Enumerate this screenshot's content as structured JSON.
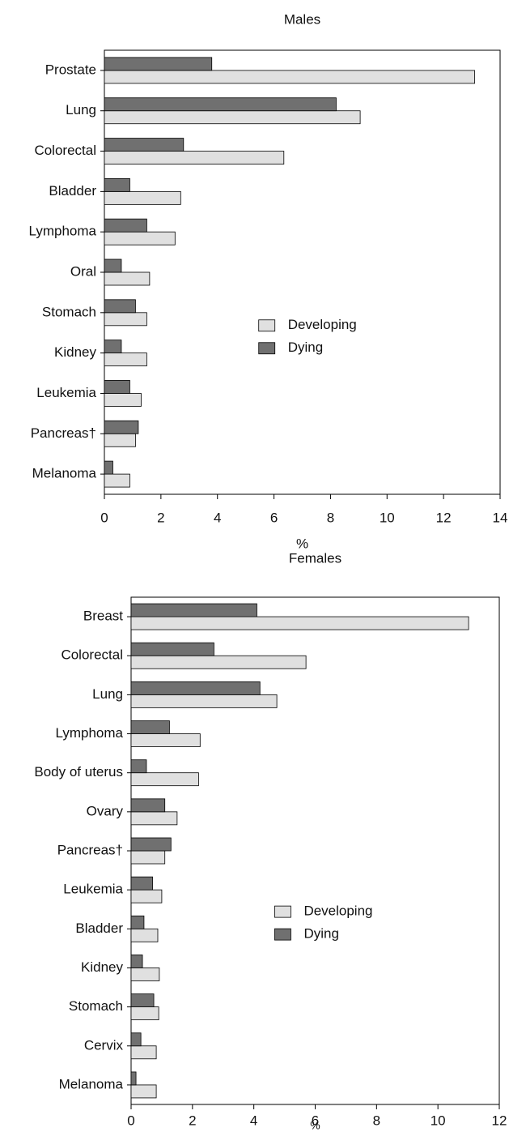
{
  "chart_data": [
    {
      "type": "barh",
      "title": "Males",
      "xlabel": "%",
      "categories": [
        "Prostate",
        "Lung",
        "Colorectal",
        "Bladder",
        "Lymphoma",
        "Oral",
        "Stomach",
        "Kidney",
        "Leukemia",
        "Pancreas†",
        "Melanoma"
      ],
      "series": [
        {
          "name": "Developing",
          "color": "#e0e0e0",
          "values": [
            13.1,
            9.05,
            6.35,
            2.7,
            2.5,
            1.6,
            1.5,
            1.5,
            1.3,
            1.1,
            0.9
          ]
        },
        {
          "name": "Dying",
          "color": "#707070",
          "values": [
            3.8,
            8.2,
            2.8,
            0.9,
            1.5,
            0.6,
            1.1,
            0.6,
            0.9,
            1.2,
            0.3
          ]
        }
      ],
      "xlim": [
        0,
        14
      ],
      "xticks": [
        0,
        2,
        4,
        6,
        8,
        10,
        12,
        14
      ],
      "legend": "center"
    },
    {
      "type": "barh",
      "title": "Females",
      "xlabel": "%",
      "categories": [
        "Breast",
        "Colorectal",
        "Lung",
        "Lymphoma",
        "Body of uterus",
        "Ovary",
        "Pancreas†",
        "Leukemia",
        "Bladder",
        "Kidney",
        "Stomach",
        "Cervix",
        "Melanoma"
      ],
      "series": [
        {
          "name": "Developing",
          "color": "#e0e0e0",
          "values": [
            11.0,
            5.7,
            4.75,
            2.25,
            2.2,
            1.5,
            1.1,
            1.0,
            0.87,
            0.92,
            0.9,
            0.82,
            0.82
          ]
        },
        {
          "name": "Dying",
          "color": "#707070",
          "values": [
            4.1,
            2.7,
            4.2,
            1.25,
            0.5,
            1.1,
            1.3,
            0.7,
            0.42,
            0.37,
            0.74,
            0.32,
            0.16
          ]
        }
      ],
      "xlim": [
        0,
        12
      ],
      "xticks": [
        0,
        2,
        4,
        6,
        8,
        10,
        12
      ],
      "legend": "center"
    }
  ]
}
